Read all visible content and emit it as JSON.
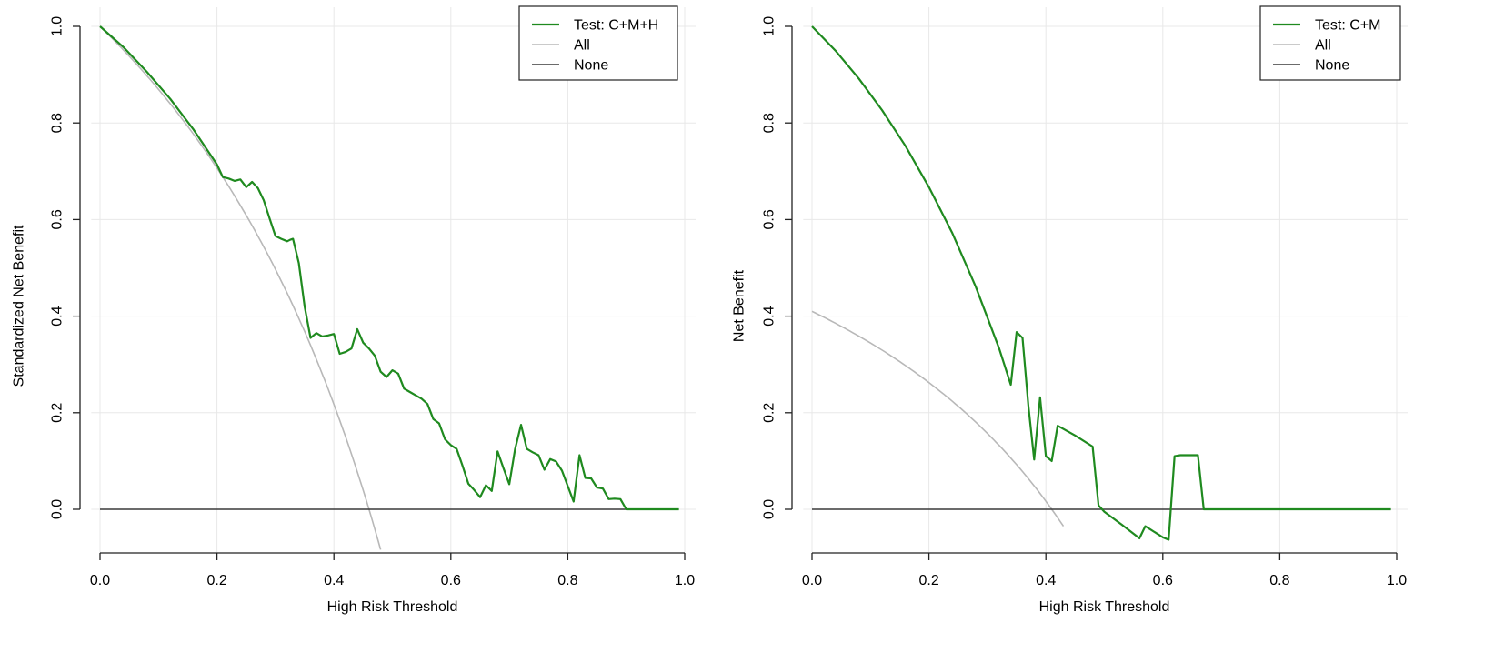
{
  "colors": {
    "test": "#1f8a1f",
    "all": "#b8b8b8",
    "none": "#3a3a3a",
    "grid": "#e8e8e8",
    "axis": "#222222"
  },
  "chart_data": [
    {
      "type": "line",
      "xlabel": "High Risk Threshold",
      "ylabel": "Standardized Net Benefit",
      "xlim": [
        0,
        1
      ],
      "ylim": [
        -0.09,
        1.0
      ],
      "xticks": [
        "0.0",
        "0.2",
        "0.4",
        "0.6",
        "0.8",
        "1.0"
      ],
      "yticks": [
        "0.0",
        "0.2",
        "0.4",
        "0.6",
        "0.8",
        "1.0"
      ],
      "grid": true,
      "legend_position": "top-right",
      "legend": [
        "Test: C+M+H",
        "All",
        "None"
      ],
      "series": [
        {
          "name": "Test: C+M+H",
          "x": [
            0.0,
            0.04,
            0.08,
            0.12,
            0.16,
            0.2,
            0.21,
            0.22,
            0.23,
            0.24,
            0.25,
            0.26,
            0.27,
            0.28,
            0.29,
            0.3,
            0.31,
            0.32,
            0.325,
            0.33,
            0.34,
            0.35,
            0.36,
            0.37,
            0.38,
            0.39,
            0.4,
            0.41,
            0.42,
            0.43,
            0.44,
            0.45,
            0.46,
            0.47,
            0.48,
            0.49,
            0.5,
            0.51,
            0.52,
            0.53,
            0.54,
            0.55,
            0.56,
            0.57,
            0.58,
            0.59,
            0.6,
            0.61,
            0.62,
            0.63,
            0.64,
            0.65,
            0.66,
            0.67,
            0.68,
            0.69,
            0.7,
            0.71,
            0.72,
            0.73,
            0.74,
            0.75,
            0.76,
            0.77,
            0.78,
            0.79,
            0.8,
            0.81,
            0.82,
            0.83,
            0.84,
            0.85,
            0.86,
            0.87,
            0.88,
            0.89,
            0.9,
            0.95,
            0.99
          ],
          "y": [
            1.0,
            0.957,
            0.906,
            0.85,
            0.786,
            0.714,
            0.688,
            0.685,
            0.68,
            0.683,
            0.667,
            0.678,
            0.665,
            0.64,
            0.602,
            0.566,
            0.56,
            0.555,
            0.558,
            0.56,
            0.51,
            0.42,
            0.355,
            0.365,
            0.358,
            0.36,
            0.363,
            0.322,
            0.326,
            0.333,
            0.373,
            0.345,
            0.333,
            0.318,
            0.285,
            0.274,
            0.288,
            0.281,
            0.25,
            0.243,
            0.236,
            0.229,
            0.218,
            0.187,
            0.178,
            0.145,
            0.133,
            0.125,
            0.09,
            0.053,
            0.04,
            0.025,
            0.05,
            0.038,
            0.12,
            0.085,
            0.052,
            0.125,
            0.175,
            0.125,
            0.118,
            0.112,
            0.082,
            0.104,
            0.099,
            0.08,
            0.048,
            0.016,
            0.112,
            0.065,
            0.064,
            0.045,
            0.043,
            0.021,
            0.022,
            0.021,
            0.0,
            0.0,
            0.0
          ]
        },
        {
          "name": "All",
          "formula": "(p - t) / (p * (1 - t)) with p = 0.46",
          "x_range": [
            0.0,
            0.48
          ]
        },
        {
          "name": "None",
          "x": [
            0.0,
            0.99
          ],
          "y": [
            0.0,
            0.0
          ]
        }
      ]
    },
    {
      "type": "line",
      "xlabel": "High Risk Threshold",
      "ylabel": "Net Benefit",
      "xlim": [
        0,
        1
      ],
      "ylim": [
        -0.09,
        1.0
      ],
      "xticks": [
        "0.0",
        "0.2",
        "0.4",
        "0.6",
        "0.8",
        "1.0"
      ],
      "yticks": [
        "0.0",
        "0.2",
        "0.4",
        "0.6",
        "0.8",
        "1.0"
      ],
      "grid": true,
      "legend_position": "top-right",
      "legend": [
        "Test: C+M",
        "All",
        "None"
      ],
      "series": [
        {
          "name": "Test: C+M",
          "x": [
            0.0,
            0.04,
            0.08,
            0.12,
            0.16,
            0.2,
            0.24,
            0.28,
            0.32,
            0.34,
            0.35,
            0.36,
            0.37,
            0.38,
            0.39,
            0.4,
            0.41,
            0.42,
            0.45,
            0.48,
            0.49,
            0.5,
            0.53,
            0.56,
            0.57,
            0.6,
            0.61,
            0.62,
            0.63,
            0.65,
            0.66,
            0.67,
            0.8,
            0.99
          ],
          "y": [
            1.0,
            0.95,
            0.892,
            0.826,
            0.752,
            0.667,
            0.572,
            0.461,
            0.333,
            0.258,
            0.367,
            0.355,
            0.215,
            0.103,
            0.232,
            0.11,
            0.1,
            0.173,
            0.153,
            0.13,
            0.008,
            -0.005,
            -0.032,
            -0.06,
            -0.035,
            -0.058,
            -0.063,
            0.11,
            0.112,
            0.112,
            0.112,
            0.0,
            0.0,
            0.0
          ]
        },
        {
          "name": "All",
          "formula": "(p - t) / (1 - t) with p = 0.41",
          "x_range": [
            0.0,
            0.43
          ]
        },
        {
          "name": "None",
          "x": [
            0.0,
            0.99
          ],
          "y": [
            0.0,
            0.0
          ]
        }
      ]
    }
  ]
}
